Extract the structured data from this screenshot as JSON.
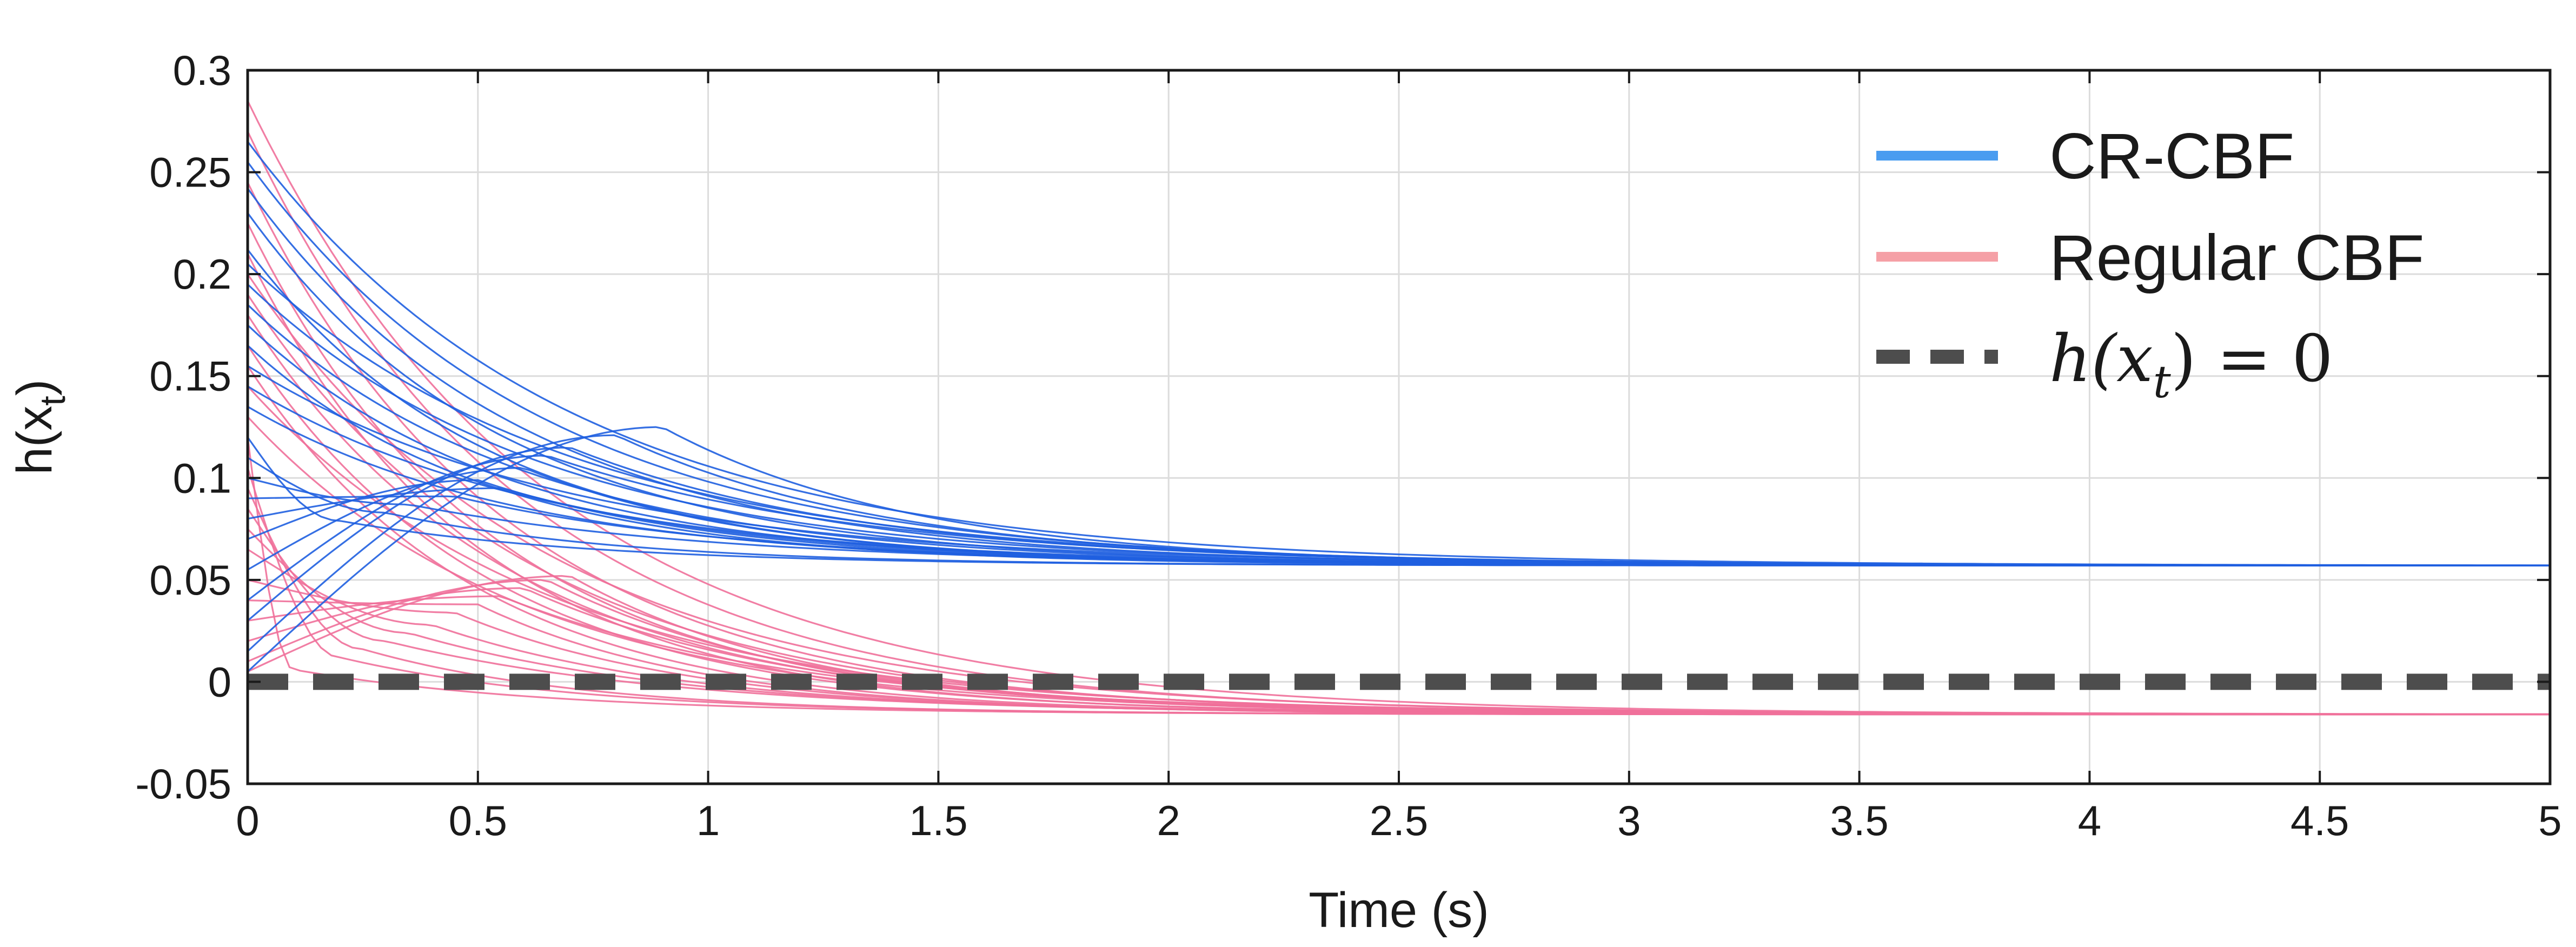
{
  "chart_data": {
    "type": "line",
    "xlabel": "Time (s)",
    "ylabel_main": "h(x",
    "ylabel_sub": "t",
    "ylabel_close": ")",
    "xlim": [
      0,
      5
    ],
    "ylim": [
      -0.05,
      0.3
    ],
    "x_ticks": [
      "0",
      "0.5",
      "1",
      "1.5",
      "2",
      "2.5",
      "3",
      "3.5",
      "4",
      "4.5",
      "5"
    ],
    "y_ticks": [
      "-0.05",
      "0",
      "0.05",
      "0.1",
      "0.15",
      "0.2",
      "0.25",
      "0.3"
    ],
    "grid": true,
    "legend_position": "top-right",
    "colors": {
      "cr_cbf": "#1f5fe0",
      "cr_cbf_legend": "#4a9cf0",
      "regular_cbf": "#f0709a",
      "regular_cbf_legend": "#f5a0a6",
      "zero_line": "#4d4d4d"
    },
    "legend": {
      "cr_cbf": "CR-CBF",
      "regular_cbf": "Regular CBF",
      "zero_line_prefix": "h(x",
      "zero_line_sub": "t",
      "zero_line_suffix": ") = 0"
    },
    "series": [
      {
        "name": "CR-CBF",
        "group": "cr",
        "steady_state": 0.057,
        "trajectories_start": [
          [
            0.0,
            0.265
          ],
          [
            0.0,
            0.255
          ],
          [
            0.0,
            0.242
          ],
          [
            0.0,
            0.23
          ],
          [
            0.0,
            0.212
          ],
          [
            0.0,
            0.205
          ],
          [
            0.0,
            0.195
          ],
          [
            0.0,
            0.185
          ],
          [
            0.0,
            0.175
          ],
          [
            0.0,
            0.165
          ],
          [
            0.0,
            0.155
          ],
          [
            0.0,
            0.145
          ],
          [
            0.0,
            0.135
          ],
          [
            0.0,
            0.12
          ],
          [
            0.0,
            0.11
          ],
          [
            0.0,
            0.1
          ],
          [
            0.0,
            0.09
          ],
          [
            0.0,
            0.08
          ],
          [
            0.0,
            0.07
          ],
          [
            0.0,
            0.055
          ],
          [
            0.0,
            0.04
          ],
          [
            0.0,
            0.03
          ],
          [
            0.0,
            0.015
          ],
          [
            0.0,
            0.005
          ]
        ],
        "peaks": [
          [
            0.0,
            0.265,
            0.0
          ],
          [
            0.0,
            0.255,
            0.0
          ],
          [
            0.0,
            0.242,
            0.0
          ],
          [
            0.0,
            0.23,
            0.0
          ],
          [
            0.0,
            0.212,
            0.0
          ],
          [
            0.0,
            0.205,
            0.0
          ],
          [
            0.0,
            0.195,
            0.0
          ],
          [
            0.0,
            0.185,
            0.0
          ],
          [
            0.0,
            0.175,
            0.0
          ],
          [
            0.0,
            0.165,
            0.0
          ],
          [
            0.0,
            0.155,
            0.0
          ],
          [
            0.0,
            0.145,
            0.0
          ],
          [
            0.0,
            0.135,
            0.0
          ],
          [
            0.0,
            0.12,
            0.2
          ],
          [
            0.0,
            0.11,
            0.3
          ],
          [
            0.0,
            0.1,
            0.35
          ],
          [
            0.0,
            0.09,
            0.45
          ],
          [
            0.0,
            0.08,
            0.55
          ],
          [
            0.0,
            0.07,
            0.5
          ],
          [
            0.0,
            0.055,
            0.6
          ],
          [
            0.0,
            0.04,
            0.65
          ],
          [
            0.0,
            0.03,
            0.7
          ],
          [
            0.0,
            0.015,
            0.8
          ],
          [
            0.0,
            0.005,
            0.9
          ]
        ]
      },
      {
        "name": "Regular CBF",
        "group": "regular",
        "steady_state": -0.016,
        "trajectories_start": [
          [
            0.0,
            0.285
          ],
          [
            0.0,
            0.27
          ],
          [
            0.0,
            0.245
          ],
          [
            0.0,
            0.225
          ],
          [
            0.0,
            0.21
          ],
          [
            0.0,
            0.2
          ],
          [
            0.0,
            0.19
          ],
          [
            0.0,
            0.18
          ],
          [
            0.0,
            0.165
          ],
          [
            0.0,
            0.155
          ],
          [
            0.0,
            0.145
          ],
          [
            0.0,
            0.13
          ],
          [
            0.0,
            0.12
          ],
          [
            0.0,
            0.105
          ],
          [
            0.0,
            0.095
          ],
          [
            0.0,
            0.085
          ],
          [
            0.0,
            0.075
          ],
          [
            0.0,
            0.065
          ],
          [
            0.0,
            0.05
          ],
          [
            0.0,
            0.04
          ],
          [
            0.0,
            0.03
          ],
          [
            0.0,
            0.02
          ],
          [
            0.0,
            0.01
          ],
          [
            0.0,
            0.005
          ]
        ],
        "peaks": [
          [
            0.0,
            0.285,
            0.0
          ],
          [
            0.0,
            0.27,
            0.0
          ],
          [
            0.0,
            0.245,
            0.0
          ],
          [
            0.0,
            0.225,
            0.0
          ],
          [
            0.0,
            0.21,
            0.0
          ],
          [
            0.0,
            0.2,
            0.0
          ],
          [
            0.0,
            0.19,
            0.0
          ],
          [
            0.0,
            0.18,
            0.0
          ],
          [
            0.0,
            0.165,
            0.0
          ],
          [
            0.0,
            0.155,
            0.0
          ],
          [
            0.0,
            0.145,
            0.0
          ],
          [
            0.0,
            0.13,
            0.0
          ],
          [
            0.0,
            0.12,
            0.1
          ],
          [
            0.0,
            0.105,
            0.2
          ],
          [
            0.0,
            0.095,
            0.25
          ],
          [
            0.0,
            0.085,
            0.3
          ],
          [
            0.0,
            0.075,
            0.35
          ],
          [
            0.0,
            0.065,
            0.4
          ],
          [
            0.0,
            0.05,
            0.45
          ],
          [
            0.0,
            0.04,
            0.5
          ],
          [
            0.0,
            0.03,
            0.55
          ],
          [
            0.0,
            0.02,
            0.6
          ],
          [
            0.0,
            0.01,
            0.65
          ],
          [
            0.0,
            0.005,
            0.7
          ]
        ]
      },
      {
        "name": "h(x_t) = 0",
        "group": "zero",
        "x": [
          0,
          5
        ],
        "y": [
          0,
          0
        ]
      }
    ]
  }
}
